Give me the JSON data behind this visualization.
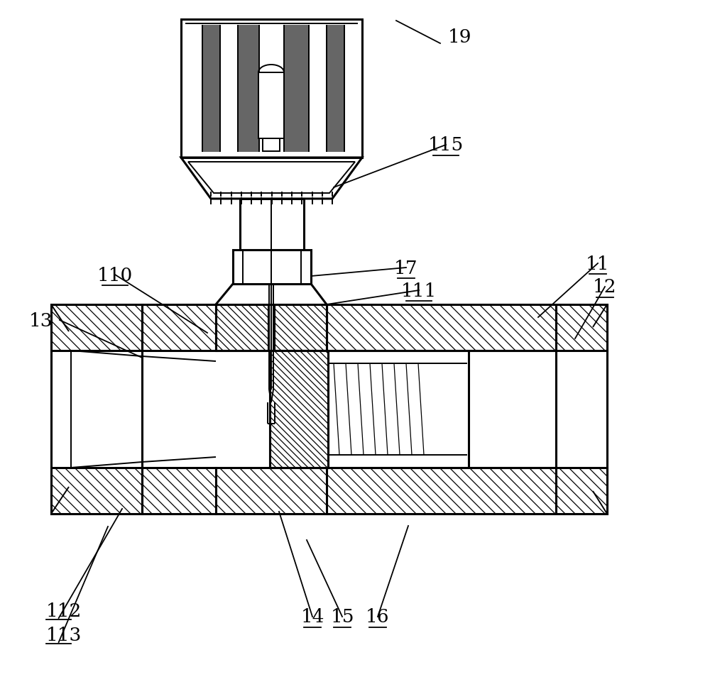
{
  "bg": "#ffffff",
  "lc": "#000000",
  "figsize": [
    10.0,
    9.79
  ],
  "dpi": 100
}
